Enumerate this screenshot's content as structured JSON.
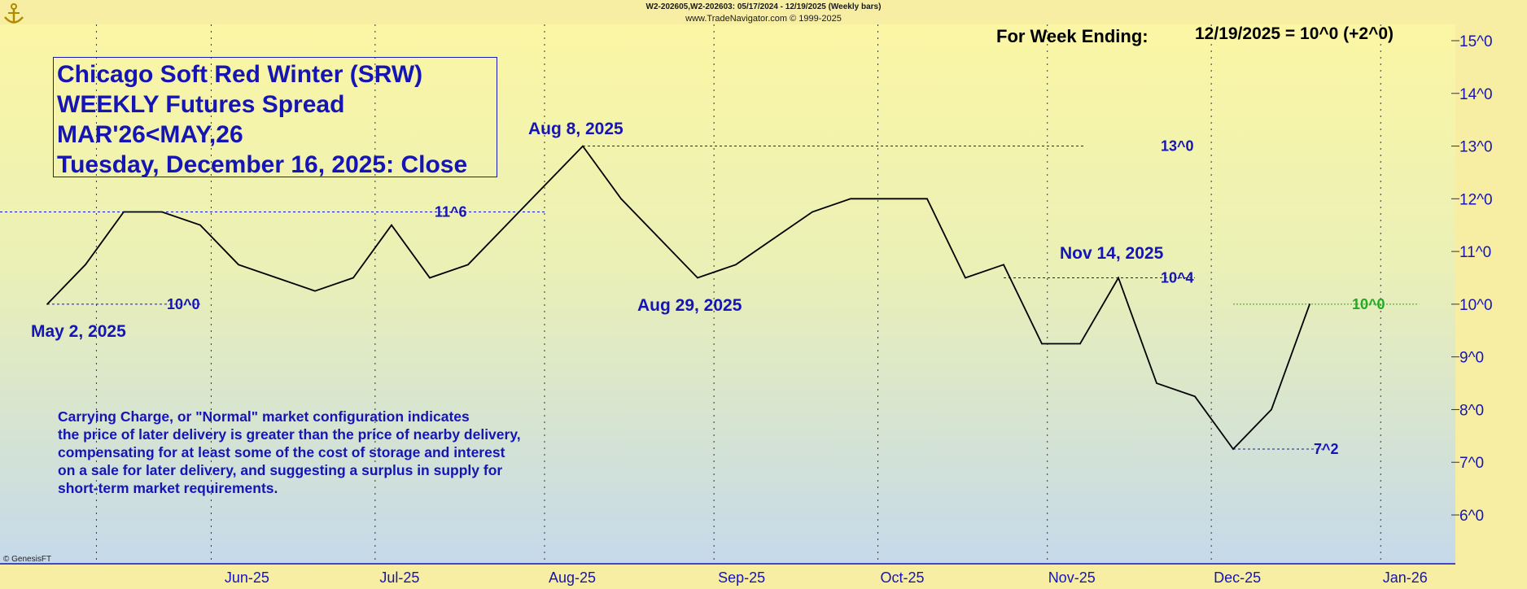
{
  "header": {
    "line1": "W2-202605,W2-202603:  05/17/2024 - 12/19/2025  (Weekly bars)",
    "line2": "www.TradeNavigator.com © 1999-2025"
  },
  "week_ending": {
    "label": "For Week Ending:",
    "value": "12/19/2025 = 10^0 (+2^0)"
  },
  "title_box": {
    "line1": "Chicago Soft Red Winter (SRW)",
    "line2": "WEEKLY Futures Spread",
    "line3": "MAR'26<MAY,26",
    "line4": "Tuesday, December 16, 2025: Close"
  },
  "description": [
    "Carrying Charge, or \"Normal\" market configuration indicates",
    "the price of later delivery is greater than the price of nearby delivery,",
    "compensating for at least some of the cost of storage and interest",
    "on a sale for later delivery, and suggesting a surplus in supply for",
    "short-term market requirements."
  ],
  "copyright": "© GenesisFT",
  "icons": {
    "corner": "anchor-icon"
  },
  "colors": {
    "line": "#000000",
    "annotation": "#1515b5",
    "latest": "#22aa22",
    "axis": "#1515b5"
  },
  "chart_data": {
    "type": "line",
    "x": [
      "2025-05-02",
      "2025-05-09",
      "2025-05-16",
      "2025-05-23",
      "2025-05-30",
      "2025-06-06",
      "2025-06-13",
      "2025-06-20",
      "2025-06-27",
      "2025-07-04",
      "2025-07-11",
      "2025-07-18",
      "2025-07-25",
      "2025-08-01",
      "2025-08-08",
      "2025-08-15",
      "2025-08-22",
      "2025-08-29",
      "2025-09-05",
      "2025-09-12",
      "2025-09-19",
      "2025-09-26",
      "2025-10-03",
      "2025-10-10",
      "2025-10-17",
      "2025-10-24",
      "2025-10-31",
      "2025-11-07",
      "2025-11-14",
      "2025-11-21",
      "2025-11-28",
      "2025-12-05",
      "2025-12-12",
      "2025-12-19"
    ],
    "y": [
      10.0,
      10.75,
      11.75,
      11.75,
      11.5,
      10.75,
      10.5,
      10.25,
      10.5,
      11.5,
      10.5,
      10.75,
      11.5,
      12.25,
      13.0,
      12.0,
      11.25,
      10.5,
      10.75,
      11.25,
      11.75,
      12.0,
      12.0,
      12.0,
      10.5,
      10.75,
      9.25,
      9.25,
      10.5,
      8.5,
      8.25,
      7.25,
      8.0,
      10.0
    ],
    "ylim": [
      5.0,
      15.3
    ],
    "y_ticks": [
      "6^0",
      "7^0",
      "8^0",
      "9^0",
      "10^0",
      "11^0",
      "12^0",
      "13^0",
      "14^0",
      "15^0"
    ],
    "x_ticks": [
      "Jun-25",
      "Jul-25",
      "Aug-25",
      "Sep-25",
      "Oct-25",
      "Nov-25",
      "Dec-25",
      "Jan-26"
    ],
    "annotations": {
      "date_labels": [
        "May 2, 2025",
        "Aug 8, 2025",
        "Aug 29, 2025",
        "Nov 14, 2025"
      ],
      "levels": [
        "10^0",
        "11^6",
        "13^0",
        "10^4",
        "7^2"
      ],
      "latest": "10^0"
    }
  }
}
